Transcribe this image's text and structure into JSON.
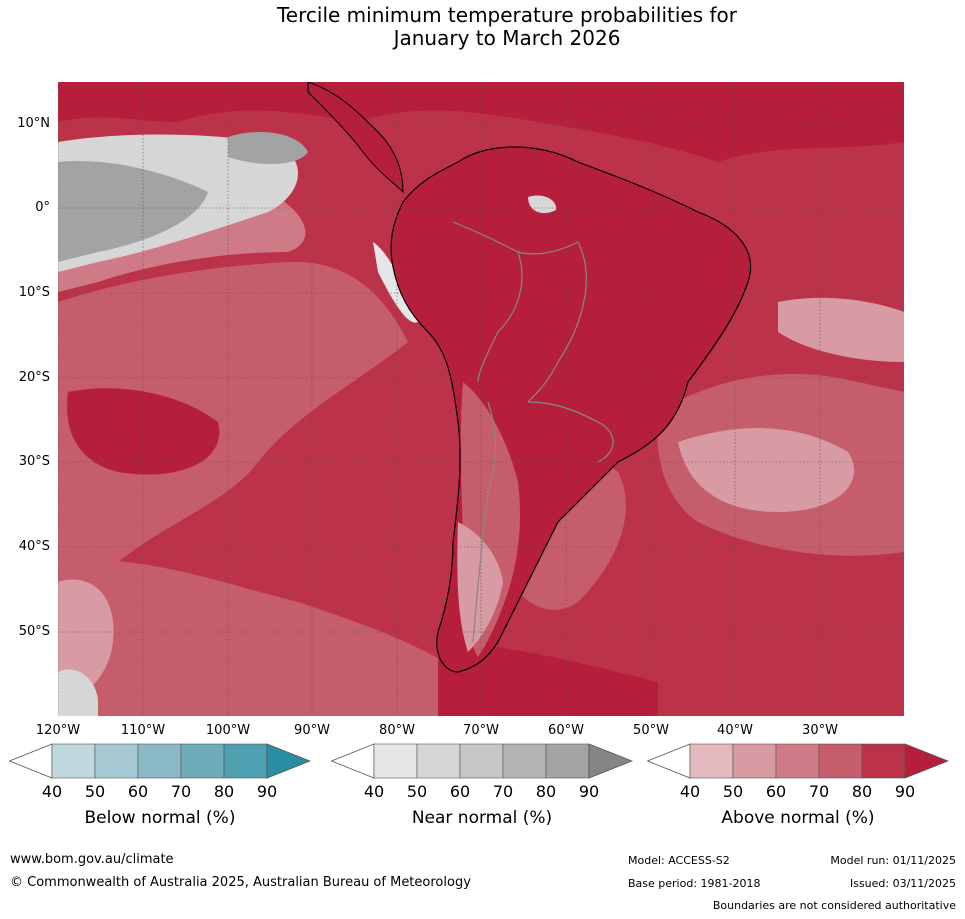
{
  "title_line1": "Tercile minimum temperature probabilities for",
  "title_line2": "January to March 2026",
  "lat_labels": [
    "10°N",
    "0°",
    "10°S",
    "20°S",
    "30°S",
    "40°S",
    "50°S"
  ],
  "lon_labels": [
    "120°W",
    "110°W",
    "100°W",
    "90°W",
    "80°W",
    "70°W",
    "60°W",
    "50°W",
    "40°W",
    "30°W"
  ],
  "colorbars": [
    {
      "title": "Below normal (%)",
      "ticks": [
        "40",
        "50",
        "60",
        "70",
        "80",
        "90"
      ],
      "colors": [
        "#bed8de",
        "#a6c9d1",
        "#8ab9c5",
        "#6eacb9",
        "#4e9fb0",
        "#2a8ea3"
      ]
    },
    {
      "title": "Near normal (%)",
      "ticks": [
        "40",
        "50",
        "60",
        "70",
        "80",
        "90"
      ],
      "colors": [
        "#e6e6e6",
        "#d6d6d6",
        "#c6c6c6",
        "#b4b4b4",
        "#a3a3a3",
        "#858585"
      ]
    },
    {
      "title": "Above normal (%)",
      "ticks": [
        "40",
        "50",
        "60",
        "70",
        "80",
        "90"
      ],
      "colors": [
        "#e3b8be",
        "#d89aa3",
        "#ce7b87",
        "#c65d6c",
        "#bc3349",
        "#b51f3c"
      ]
    }
  ],
  "footer": {
    "website": "www.bom.gov.au/climate",
    "copyright": "© Commonwealth of Australia 2025, Australian Bureau of Meteorology",
    "model": "Model: ACCESS-S2",
    "base_period": "Base period: 1981-2018",
    "model_run": "Model run: 01/11/2025",
    "issued": "Issued: 03/11/2025",
    "boundaries_note": "Boundaries are not considered authoritative"
  }
}
